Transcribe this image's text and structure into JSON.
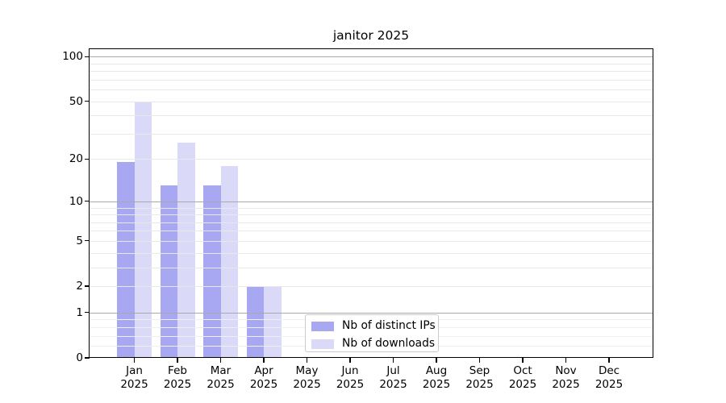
{
  "title": "janitor 2025",
  "legend": {
    "items": [
      {
        "label": "Nb of distinct IPs",
        "series": "ips"
      },
      {
        "label": "Nb of downloads",
        "series": "downloads"
      }
    ]
  },
  "colors": {
    "ips": "#a8a8f2",
    "downloads": "#dadaf8",
    "grid_dark": "#a9a9a9",
    "grid_light": "#e8e8e8",
    "grid_faint": "#efefef",
    "axis": "#000000",
    "legend_border": "#cbcbcb"
  },
  "chart_data": {
    "type": "bar",
    "title": "janitor 2025",
    "categories": [
      "Jan",
      "Feb",
      "Mar",
      "Apr",
      "May",
      "Jun",
      "Jul",
      "Aug",
      "Sep",
      "Oct",
      "Nov",
      "Dec"
    ],
    "year_label": "2025",
    "series": [
      {
        "name": "Nb of distinct IPs",
        "values": [
          19,
          13,
          13,
          2,
          0,
          0,
          0,
          0,
          0,
          0,
          0,
          0
        ]
      },
      {
        "name": "Nb of downloads",
        "values": [
          50,
          26,
          18,
          2,
          0,
          0,
          0,
          0,
          0,
          0,
          0,
          0
        ]
      }
    ],
    "yscale": "log1p",
    "ylim": [
      0,
      112
    ],
    "yticks": [
      0,
      1,
      2,
      5,
      10,
      20,
      50,
      100
    ],
    "grid_major_values": [
      1,
      10,
      100
    ],
    "grid_minor_values": [
      2,
      3,
      4,
      5,
      6,
      7,
      8,
      9,
      20,
      30,
      40,
      50,
      60,
      70,
      80,
      90
    ],
    "grid_faint_values": [
      0.2,
      0.4,
      0.6,
      0.8
    ],
    "legend_position": "lower center",
    "grid": "on, drawn above bars"
  }
}
